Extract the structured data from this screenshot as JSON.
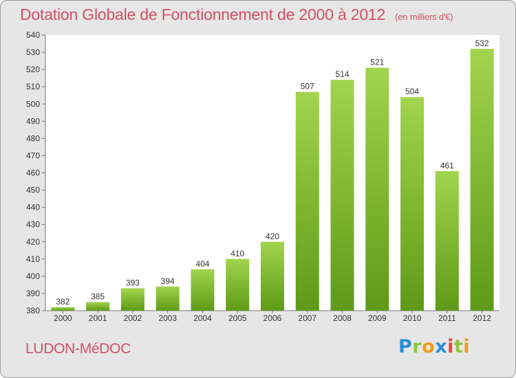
{
  "chart_data": {
    "type": "bar",
    "title": "Dotation Globale de Fonctionnement de 2000 à 2012",
    "subtitle": "(en milliers d'€)",
    "xlabel": "",
    "ylabel": "",
    "categories": [
      "2000",
      "2001",
      "2002",
      "2003",
      "2004",
      "2005",
      "2006",
      "2007",
      "2008",
      "2009",
      "2010",
      "2011",
      "2012"
    ],
    "values": [
      382,
      385,
      393,
      394,
      404,
      410,
      420,
      507,
      514,
      521,
      504,
      461,
      532
    ],
    "ylim": [
      380,
      540
    ],
    "ytick_step": 10,
    "grid": false,
    "bar_color": "#8cc63f",
    "bar_color_light": "#a2d44e",
    "bar_color_dark": "#5e9a17"
  },
  "footer": {
    "city": "LUDON-MéDOC",
    "logo_letters": [
      "P",
      "r",
      "o",
      "x",
      "i",
      "t",
      "i"
    ]
  },
  "colors": {
    "title": "#d05068",
    "background": "#e6e6e6",
    "plot_background": "#ffffff"
  }
}
